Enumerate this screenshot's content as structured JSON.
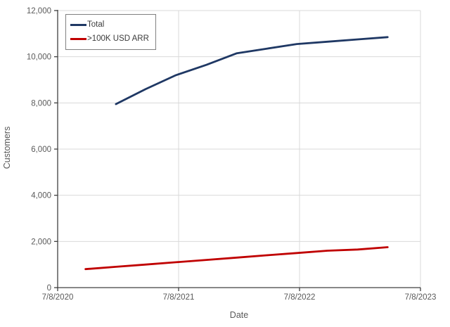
{
  "chart_data": {
    "type": "line",
    "title": "",
    "xlabel": "Date",
    "ylabel": "Customers",
    "xlim": [
      "7/8/2020",
      "7/8/2023"
    ],
    "ylim": [
      0,
      12000
    ],
    "x_tick_labels": [
      "7/8/2020",
      "7/8/2021",
      "7/8/2022",
      "7/8/2023"
    ],
    "y_tick_values": [
      0,
      2000,
      4000,
      6000,
      8000,
      10000,
      12000
    ],
    "y_tick_labels": [
      "0",
      "2,000",
      "4,000",
      "6,000",
      "8,000",
      "10,000",
      "12,000"
    ],
    "grid": true,
    "legend_position": "top-left",
    "colors": {
      "grid": "#d9d9d9",
      "axis": "#404040",
      "tick_text": "#595959",
      "background": "#ffffff",
      "legend_border": "#808080"
    },
    "series": [
      {
        "name": "Total",
        "color": "#1f3864",
        "points": [
          {
            "date": "12/31/2020",
            "value": 7950
          },
          {
            "date": "3/31/2021",
            "value": 8600
          },
          {
            "date": "6/30/2021",
            "value": 9200
          },
          {
            "date": "9/30/2021",
            "value": 9650
          },
          {
            "date": "12/31/2021",
            "value": 10150
          },
          {
            "date": "3/31/2022",
            "value": 10350
          },
          {
            "date": "6/30/2022",
            "value": 10550
          },
          {
            "date": "9/30/2022",
            "value": 10650
          },
          {
            "date": "12/31/2022",
            "value": 10750
          },
          {
            "date": "3/31/2023",
            "value": 10850
          }
        ]
      },
      {
        "name": ">100K USD ARR",
        "color": "#c00000",
        "points": [
          {
            "date": "9/30/2020",
            "value": 800
          },
          {
            "date": "12/31/2020",
            "value": 900
          },
          {
            "date": "3/31/2021",
            "value": 1000
          },
          {
            "date": "6/30/2021",
            "value": 1100
          },
          {
            "date": "9/30/2021",
            "value": 1200
          },
          {
            "date": "12/31/2021",
            "value": 1300
          },
          {
            "date": "3/31/2022",
            "value": 1400
          },
          {
            "date": "6/30/2022",
            "value": 1500
          },
          {
            "date": "9/30/2022",
            "value": 1600
          },
          {
            "date": "12/31/2022",
            "value": 1650
          },
          {
            "date": "3/31/2023",
            "value": 1750
          }
        ]
      }
    ]
  }
}
